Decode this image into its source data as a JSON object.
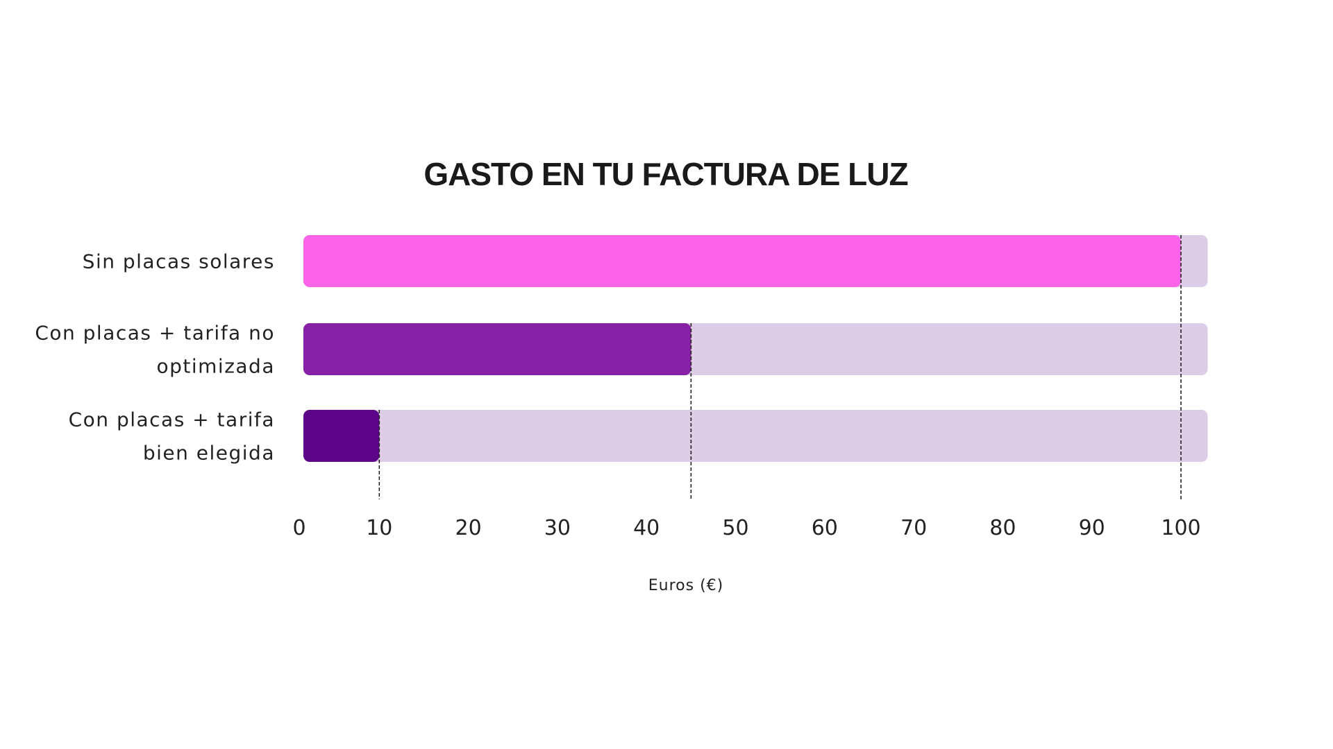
{
  "chart_data": {
    "type": "bar",
    "orientation": "horizontal",
    "title": "GASTO EN TU FACTURA DE LUZ",
    "xlabel": "Euros (€)",
    "ylabel": "",
    "categories": [
      "Sin placas solares",
      "Con placas + tarifa no optimizada",
      "Con placas + tarifa bien elegida"
    ],
    "category_lines": [
      [
        "Sin placas solares"
      ],
      [
        "Con placas + tarifa no",
        "optimizada"
      ],
      [
        "Con placas + tarifa",
        "bien elegida"
      ]
    ],
    "values": [
      100,
      45,
      10
    ],
    "xlim": [
      0,
      103
    ],
    "xticks": [
      0,
      10,
      20,
      30,
      40,
      50,
      60,
      70,
      80,
      90,
      100
    ],
    "grid": false,
    "reference_lines": [
      10,
      45,
      100
    ],
    "colors": {
      "bars": [
        "#FB64E9",
        "#8721A6",
        "#5C0589"
      ],
      "track": "#DCCCE6",
      "reference_line": "#222222"
    }
  }
}
